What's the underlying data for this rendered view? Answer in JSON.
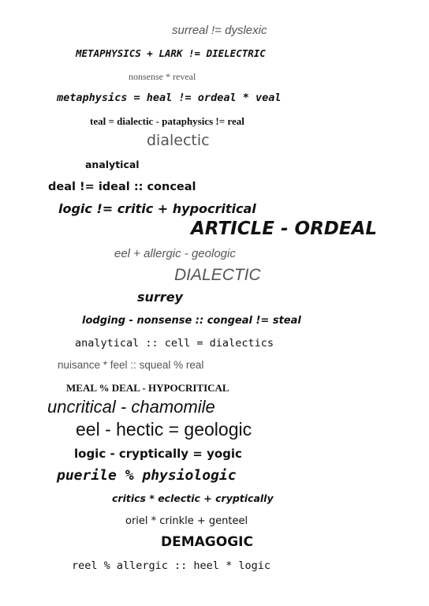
{
  "lines": [
    "surreal != dyslexic",
    "METAPHYSICS + LARK != DIELECTRIC",
    "nonsense * reveal",
    "metaphysics = heal != ordeal * veal",
    "teal = dialectic - pataphysics != real",
    "dialectic",
    "analytical",
    "deal != ideal :: conceal",
    "logic != critic + hypocritical",
    "ARTICLE - ORDEAL",
    "eel + allergic - geologic",
    "DIALECTIC",
    "surrey",
    "lodging - nonsense :: congeal != steal",
    "analytical :: cell = dialectics",
    "nuisance * feel :: squeal % real",
    "MEAL % DEAL - HYPOCRITICAL",
    "uncritical - chamomile",
    "eel - hectic = geologic",
    "logic - cryptically = yogic",
    "puerile % physiologic",
    "critics * eclectic + cryptically",
    "oriel * crinkle + genteel",
    "DEMAGOGIC",
    "reel % allergic :: heel * logic"
  ]
}
